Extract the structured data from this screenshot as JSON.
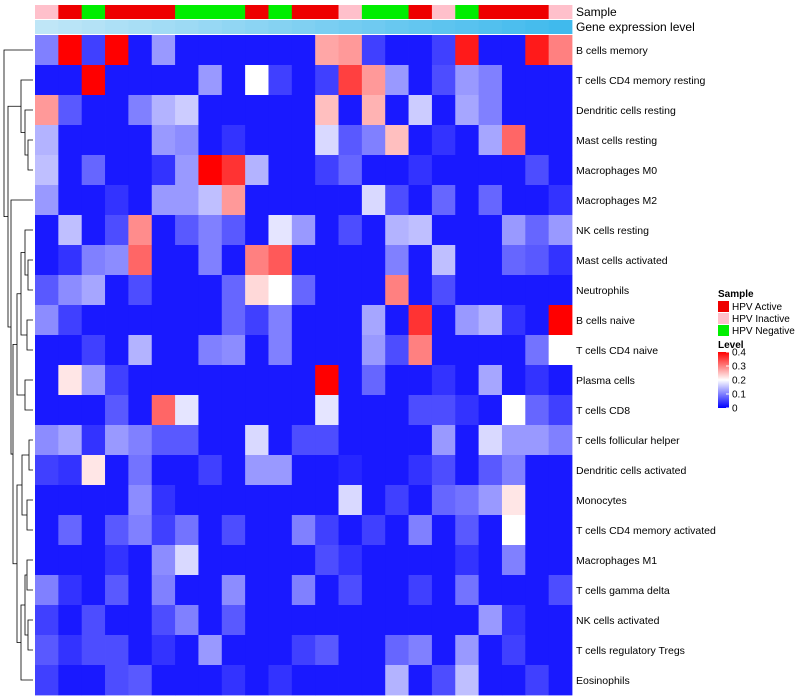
{
  "chart_data": {
    "type": "heatmap",
    "annotation_labels": [
      "Sample",
      "Gene expression level"
    ],
    "rows": [
      "B cells memory",
      "T cells CD4 memory resting",
      "Dendritic cells resting",
      "Mast cells resting",
      "Macrophages M0",
      "Macrophages M2",
      "NK cells resting",
      "Mast cells activated",
      "Neutrophils",
      "B cells naive",
      "T cells CD4 naive",
      "Plasma cells",
      "T cells CD8",
      "T cells follicular helper",
      "Dendritic cells activated",
      "Monocytes",
      "T cells CD4 memory activated",
      "Macrophages M1",
      "T cells gamma delta",
      "NK cells activated",
      "T cells regulatory  Tregs",
      "Eosinophils"
    ],
    "sample_groups": [
      "Inactive",
      "Active",
      "Negative",
      "Active",
      "Active",
      "Active",
      "Negative",
      "Negative",
      "Negative",
      "Active",
      "Negative",
      "Active",
      "Active",
      "Inactive",
      "Negative",
      "Negative",
      "Active",
      "Inactive",
      "Negative",
      "Active",
      "Active",
      "Active",
      "Inactive"
    ],
    "gene_expression_level": [
      0.0,
      0.04,
      0.08,
      0.13,
      0.17,
      0.21,
      0.25,
      0.29,
      0.33,
      0.38,
      0.42,
      0.46,
      0.5,
      0.54,
      0.58,
      0.63,
      0.67,
      0.71,
      0.75,
      0.79,
      0.83,
      0.88,
      0.92
    ],
    "values": [
      [
        0.1,
        0.4,
        0.05,
        0.4,
        0.02,
        0.12,
        0.02,
        0.02,
        0.02,
        0.02,
        0.02,
        0.02,
        0.27,
        0.28,
        0.05,
        0.02,
        0.02,
        0.05,
        0.38,
        0.02,
        0.02,
        0.38,
        0.3
      ],
      [
        0.02,
        0.02,
        0.4,
        0.02,
        0.02,
        0.02,
        0.02,
        0.12,
        0.02,
        0.2,
        0.05,
        0.02,
        0.05,
        0.35,
        0.28,
        0.12,
        0.02,
        0.06,
        0.12,
        0.1,
        0.02,
        0.02,
        0.02
      ],
      [
        0.28,
        0.07,
        0.02,
        0.02,
        0.1,
        0.14,
        0.16,
        0.02,
        0.02,
        0.02,
        0.02,
        0.02,
        0.25,
        0.02,
        0.26,
        0.02,
        0.16,
        0.02,
        0.13,
        0.1,
        0.02,
        0.02,
        0.02
      ],
      [
        0.14,
        0.02,
        0.02,
        0.02,
        0.02,
        0.12,
        0.11,
        0.02,
        0.04,
        0.02,
        0.02,
        0.02,
        0.17,
        0.07,
        0.1,
        0.25,
        0.02,
        0.04,
        0.02,
        0.13,
        0.32,
        0.02,
        0.02
      ],
      [
        0.15,
        0.02,
        0.08,
        0.02,
        0.02,
        0.04,
        0.12,
        0.4,
        0.36,
        0.14,
        0.02,
        0.02,
        0.05,
        0.08,
        0.02,
        0.02,
        0.04,
        0.02,
        0.02,
        0.02,
        0.02,
        0.06,
        0.02
      ],
      [
        0.12,
        0.02,
        0.02,
        0.04,
        0.02,
        0.12,
        0.12,
        0.15,
        0.28,
        0.02,
        0.02,
        0.02,
        0.02,
        0.02,
        0.17,
        0.06,
        0.02,
        0.08,
        0.02,
        0.08,
        0.02,
        0.02,
        0.04
      ],
      [
        0.02,
        0.15,
        0.02,
        0.06,
        0.29,
        0.02,
        0.07,
        0.1,
        0.07,
        0.02,
        0.18,
        0.12,
        0.02,
        0.06,
        0.02,
        0.14,
        0.15,
        0.02,
        0.02,
        0.02,
        0.12,
        0.08,
        0.12
      ],
      [
        0.02,
        0.04,
        0.1,
        0.11,
        0.32,
        0.02,
        0.02,
        0.1,
        0.02,
        0.3,
        0.33,
        0.02,
        0.02,
        0.02,
        0.02,
        0.1,
        0.02,
        0.15,
        0.02,
        0.02,
        0.08,
        0.07,
        0.04
      ],
      [
        0.07,
        0.11,
        0.13,
        0.02,
        0.06,
        0.02,
        0.02,
        0.02,
        0.08,
        0.23,
        0.2,
        0.08,
        0.02,
        0.02,
        0.02,
        0.3,
        0.02,
        0.06,
        0.02,
        0.02,
        0.02,
        0.02,
        0.02
      ],
      [
        0.11,
        0.05,
        0.02,
        0.02,
        0.02,
        0.02,
        0.02,
        0.02,
        0.08,
        0.05,
        0.1,
        0.02,
        0.02,
        0.02,
        0.13,
        0.02,
        0.36,
        0.02,
        0.12,
        0.14,
        0.04,
        0.02,
        0.4
      ],
      [
        0.02,
        0.02,
        0.05,
        0.02,
        0.14,
        0.02,
        0.02,
        0.1,
        0.11,
        0.02,
        0.1,
        0.02,
        0.02,
        0.02,
        0.12,
        0.06,
        0.3,
        0.02,
        0.02,
        0.02,
        0.02,
        0.09,
        0.2
      ],
      [
        0.02,
        0.22,
        0.12,
        0.05,
        0.02,
        0.02,
        0.02,
        0.02,
        0.02,
        0.02,
        0.02,
        0.02,
        0.4,
        0.02,
        0.08,
        0.02,
        0.02,
        0.04,
        0.02,
        0.13,
        0.02,
        0.04,
        0.02
      ],
      [
        0.02,
        0.02,
        0.02,
        0.07,
        0.02,
        0.32,
        0.18,
        0.02,
        0.02,
        0.02,
        0.02,
        0.02,
        0.18,
        0.02,
        0.02,
        0.02,
        0.06,
        0.06,
        0.04,
        0.02,
        0.2,
        0.08,
        0.05
      ],
      [
        0.11,
        0.13,
        0.04,
        0.12,
        0.1,
        0.07,
        0.07,
        0.02,
        0.02,
        0.17,
        0.02,
        0.06,
        0.06,
        0.02,
        0.02,
        0.02,
        0.02,
        0.12,
        0.02,
        0.17,
        0.12,
        0.12,
        0.1
      ],
      [
        0.05,
        0.04,
        0.22,
        0.02,
        0.09,
        0.02,
        0.02,
        0.05,
        0.02,
        0.12,
        0.12,
        0.02,
        0.02,
        0.03,
        0.02,
        0.02,
        0.04,
        0.06,
        0.02,
        0.07,
        0.1,
        0.02,
        0.02
      ],
      [
        0.02,
        0.02,
        0.02,
        0.02,
        0.11,
        0.04,
        0.02,
        0.02,
        0.02,
        0.02,
        0.02,
        0.02,
        0.02,
        0.17,
        0.02,
        0.05,
        0.02,
        0.08,
        0.09,
        0.12,
        0.22,
        0.02,
        0.02
      ],
      [
        0.02,
        0.08,
        0.02,
        0.07,
        0.1,
        0.05,
        0.09,
        0.02,
        0.06,
        0.02,
        0.02,
        0.1,
        0.05,
        0.02,
        0.05,
        0.02,
        0.1,
        0.02,
        0.07,
        0.02,
        0.2,
        0.02,
        0.02
      ],
      [
        0.02,
        0.02,
        0.02,
        0.04,
        0.02,
        0.11,
        0.17,
        0.02,
        0.02,
        0.02,
        0.02,
        0.02,
        0.06,
        0.04,
        0.02,
        0.02,
        0.02,
        0.02,
        0.04,
        0.02,
        0.1,
        0.02,
        0.02
      ],
      [
        0.1,
        0.04,
        0.02,
        0.07,
        0.02,
        0.1,
        0.02,
        0.02,
        0.11,
        0.02,
        0.02,
        0.1,
        0.02,
        0.06,
        0.02,
        0.02,
        0.05,
        0.02,
        0.09,
        0.02,
        0.02,
        0.02,
        0.06
      ],
      [
        0.05,
        0.02,
        0.06,
        0.02,
        0.02,
        0.06,
        0.1,
        0.02,
        0.07,
        0.02,
        0.02,
        0.02,
        0.02,
        0.02,
        0.02,
        0.02,
        0.02,
        0.02,
        0.02,
        0.12,
        0.04,
        0.02,
        0.02
      ],
      [
        0.07,
        0.04,
        0.06,
        0.06,
        0.02,
        0.04,
        0.02,
        0.12,
        0.02,
        0.02,
        0.02,
        0.05,
        0.07,
        0.02,
        0.02,
        0.08,
        0.1,
        0.02,
        0.12,
        0.02,
        0.05,
        0.02,
        0.02
      ],
      [
        0.05,
        0.02,
        0.02,
        0.06,
        0.07,
        0.02,
        0.02,
        0.02,
        0.04,
        0.02,
        0.04,
        0.02,
        0.02,
        0.02,
        0.02,
        0.14,
        0.02,
        0.06,
        0.15,
        0.02,
        0.02,
        0.05,
        0.02
      ]
    ],
    "legend": {
      "sample_title": "Sample",
      "sample_entries": [
        {
          "label": "HPV Active",
          "color": "#ee0000"
        },
        {
          "label": "HPV Inactive",
          "color": "#ffc0cb"
        },
        {
          "label": "HPV Negative",
          "color": "#00ee00"
        }
      ],
      "level_title": "Level",
      "level_ticks": [
        "0.4",
        "0.3",
        "0.2",
        "0.1",
        "0"
      ],
      "level_range": [
        0,
        0.4
      ],
      "placement": "right"
    },
    "gene_level_gradient": [
      "#bfe6f7",
      "#35b6ec"
    ],
    "color_scale": [
      "#0000ff",
      "#ffffff",
      "#ff0000"
    ],
    "group_colors": {
      "Active": "#ee0000",
      "Inactive": "#ffc0cb",
      "Negative": "#00ee00"
    }
  }
}
